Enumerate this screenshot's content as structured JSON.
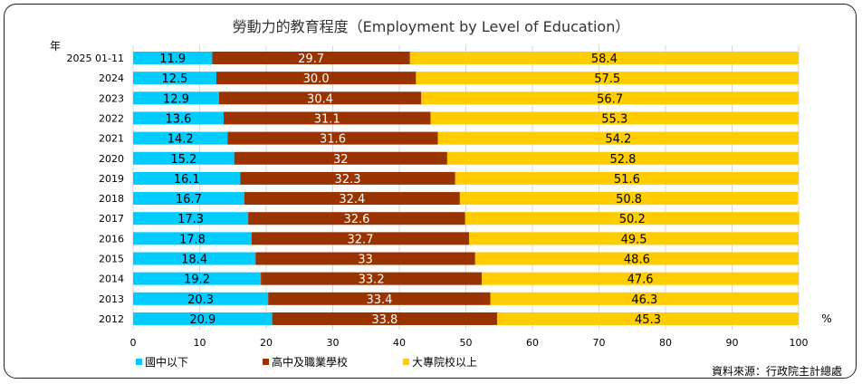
{
  "chart_data": {
    "type": "bar",
    "orientation": "horizontal",
    "stacked": true,
    "title": "勞動力的教育程度（Employment by Level of Education）",
    "ylabel": "年",
    "xlabel": "%",
    "xlim": [
      0,
      100
    ],
    "xticks": [
      0,
      10,
      20,
      30,
      40,
      50,
      60,
      70,
      80,
      90,
      100
    ],
    "grid": true,
    "legend_position": "bottom-left",
    "categories": [
      "2025 01-11",
      "2024",
      "2023",
      "2022",
      "2021",
      "2020",
      "2019",
      "2018",
      "2017",
      "2016",
      "2015",
      "2014",
      "2013",
      "2012"
    ],
    "series": [
      {
        "name": "國中以下",
        "color": "#00CCFF",
        "label_color": "#000000",
        "values": [
          11.9,
          12.5,
          12.9,
          13.6,
          14.2,
          15.2,
          16.1,
          16.7,
          17.3,
          17.8,
          18.4,
          19.2,
          20.3,
          20.9
        ],
        "labels": [
          "11.9",
          "12.5",
          "12.9",
          "13.6",
          "14.2",
          "15.2",
          "16.1",
          "16.7",
          "17.3",
          "17.8",
          "18.4",
          "19.2",
          "20.3",
          "20.9"
        ]
      },
      {
        "name": "高中及職業學校",
        "color": "#993300",
        "label_color": "#FFFFFF",
        "values": [
          29.7,
          30.0,
          30.4,
          31.1,
          31.6,
          32,
          32.3,
          32.4,
          32.6,
          32.7,
          33,
          33.2,
          33.4,
          33.8
        ],
        "labels": [
          "29.7",
          "30.0",
          "30.4",
          "31.1",
          "31.6",
          "32",
          "32.3",
          "32.4",
          "32.6",
          "32.7",
          "33",
          "33.2",
          "33.4",
          "33.8"
        ]
      },
      {
        "name": "大專院校以上",
        "color": "#FFCC00",
        "label_color": "#000000",
        "values": [
          58.4,
          57.5,
          56.7,
          55.3,
          54.2,
          52.8,
          51.6,
          50.8,
          50.2,
          49.5,
          48.6,
          47.6,
          46.3,
          45.3
        ],
        "labels": [
          "58.4",
          "57.5",
          "56.7",
          "55.3",
          "54.2",
          "52.8",
          "51.6",
          "50.8",
          "50.2",
          "49.5",
          "48.6",
          "47.6",
          "46.3",
          "45.3"
        ]
      }
    ],
    "source": "資料來源：行政院主計總處"
  }
}
